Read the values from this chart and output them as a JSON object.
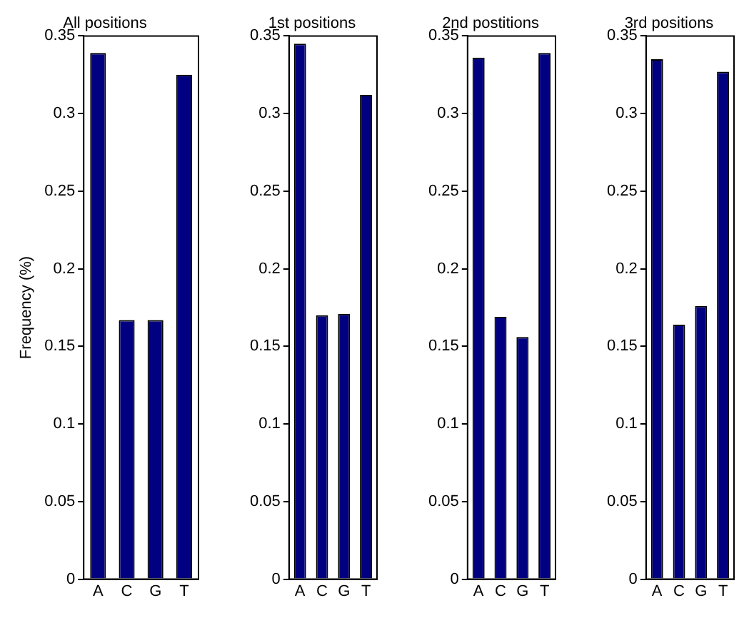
{
  "chart_data": [
    {
      "type": "bar",
      "title": "All positions",
      "ylabel": "Frequency (%)",
      "categories": [
        "A",
        "C",
        "G",
        "T"
      ],
      "values": [
        0.339,
        0.167,
        0.167,
        0.325
      ],
      "color": "#000080",
      "ylim": [
        0,
        0.35
      ],
      "yticks": [
        0,
        0.05,
        0.1,
        0.15,
        0.2,
        0.25,
        0.3,
        0.35
      ]
    },
    {
      "type": "bar",
      "title": "1st positions",
      "categories": [
        "A",
        "C",
        "G",
        "T"
      ],
      "values": [
        0.345,
        0.17,
        0.171,
        0.312
      ],
      "color": "#000080",
      "ylim": [
        0,
        0.35
      ],
      "yticks": [
        0,
        0.05,
        0.1,
        0.15,
        0.2,
        0.25,
        0.3,
        0.35
      ]
    },
    {
      "type": "bar",
      "title": "2nd postitions",
      "categories": [
        "A",
        "C",
        "G",
        "T"
      ],
      "values": [
        0.336,
        0.169,
        0.156,
        0.339
      ],
      "color": "#000080",
      "ylim": [
        0,
        0.35
      ],
      "yticks": [
        0,
        0.05,
        0.1,
        0.15,
        0.2,
        0.25,
        0.3,
        0.35
      ]
    },
    {
      "type": "bar",
      "title": "3rd positions",
      "categories": [
        "A",
        "C",
        "G",
        "T"
      ],
      "values": [
        0.335,
        0.164,
        0.176,
        0.327
      ],
      "color": "#000080",
      "ylim": [
        0,
        0.35
      ],
      "yticks": [
        0,
        0.05,
        0.1,
        0.15,
        0.2,
        0.25,
        0.3,
        0.35
      ]
    }
  ]
}
